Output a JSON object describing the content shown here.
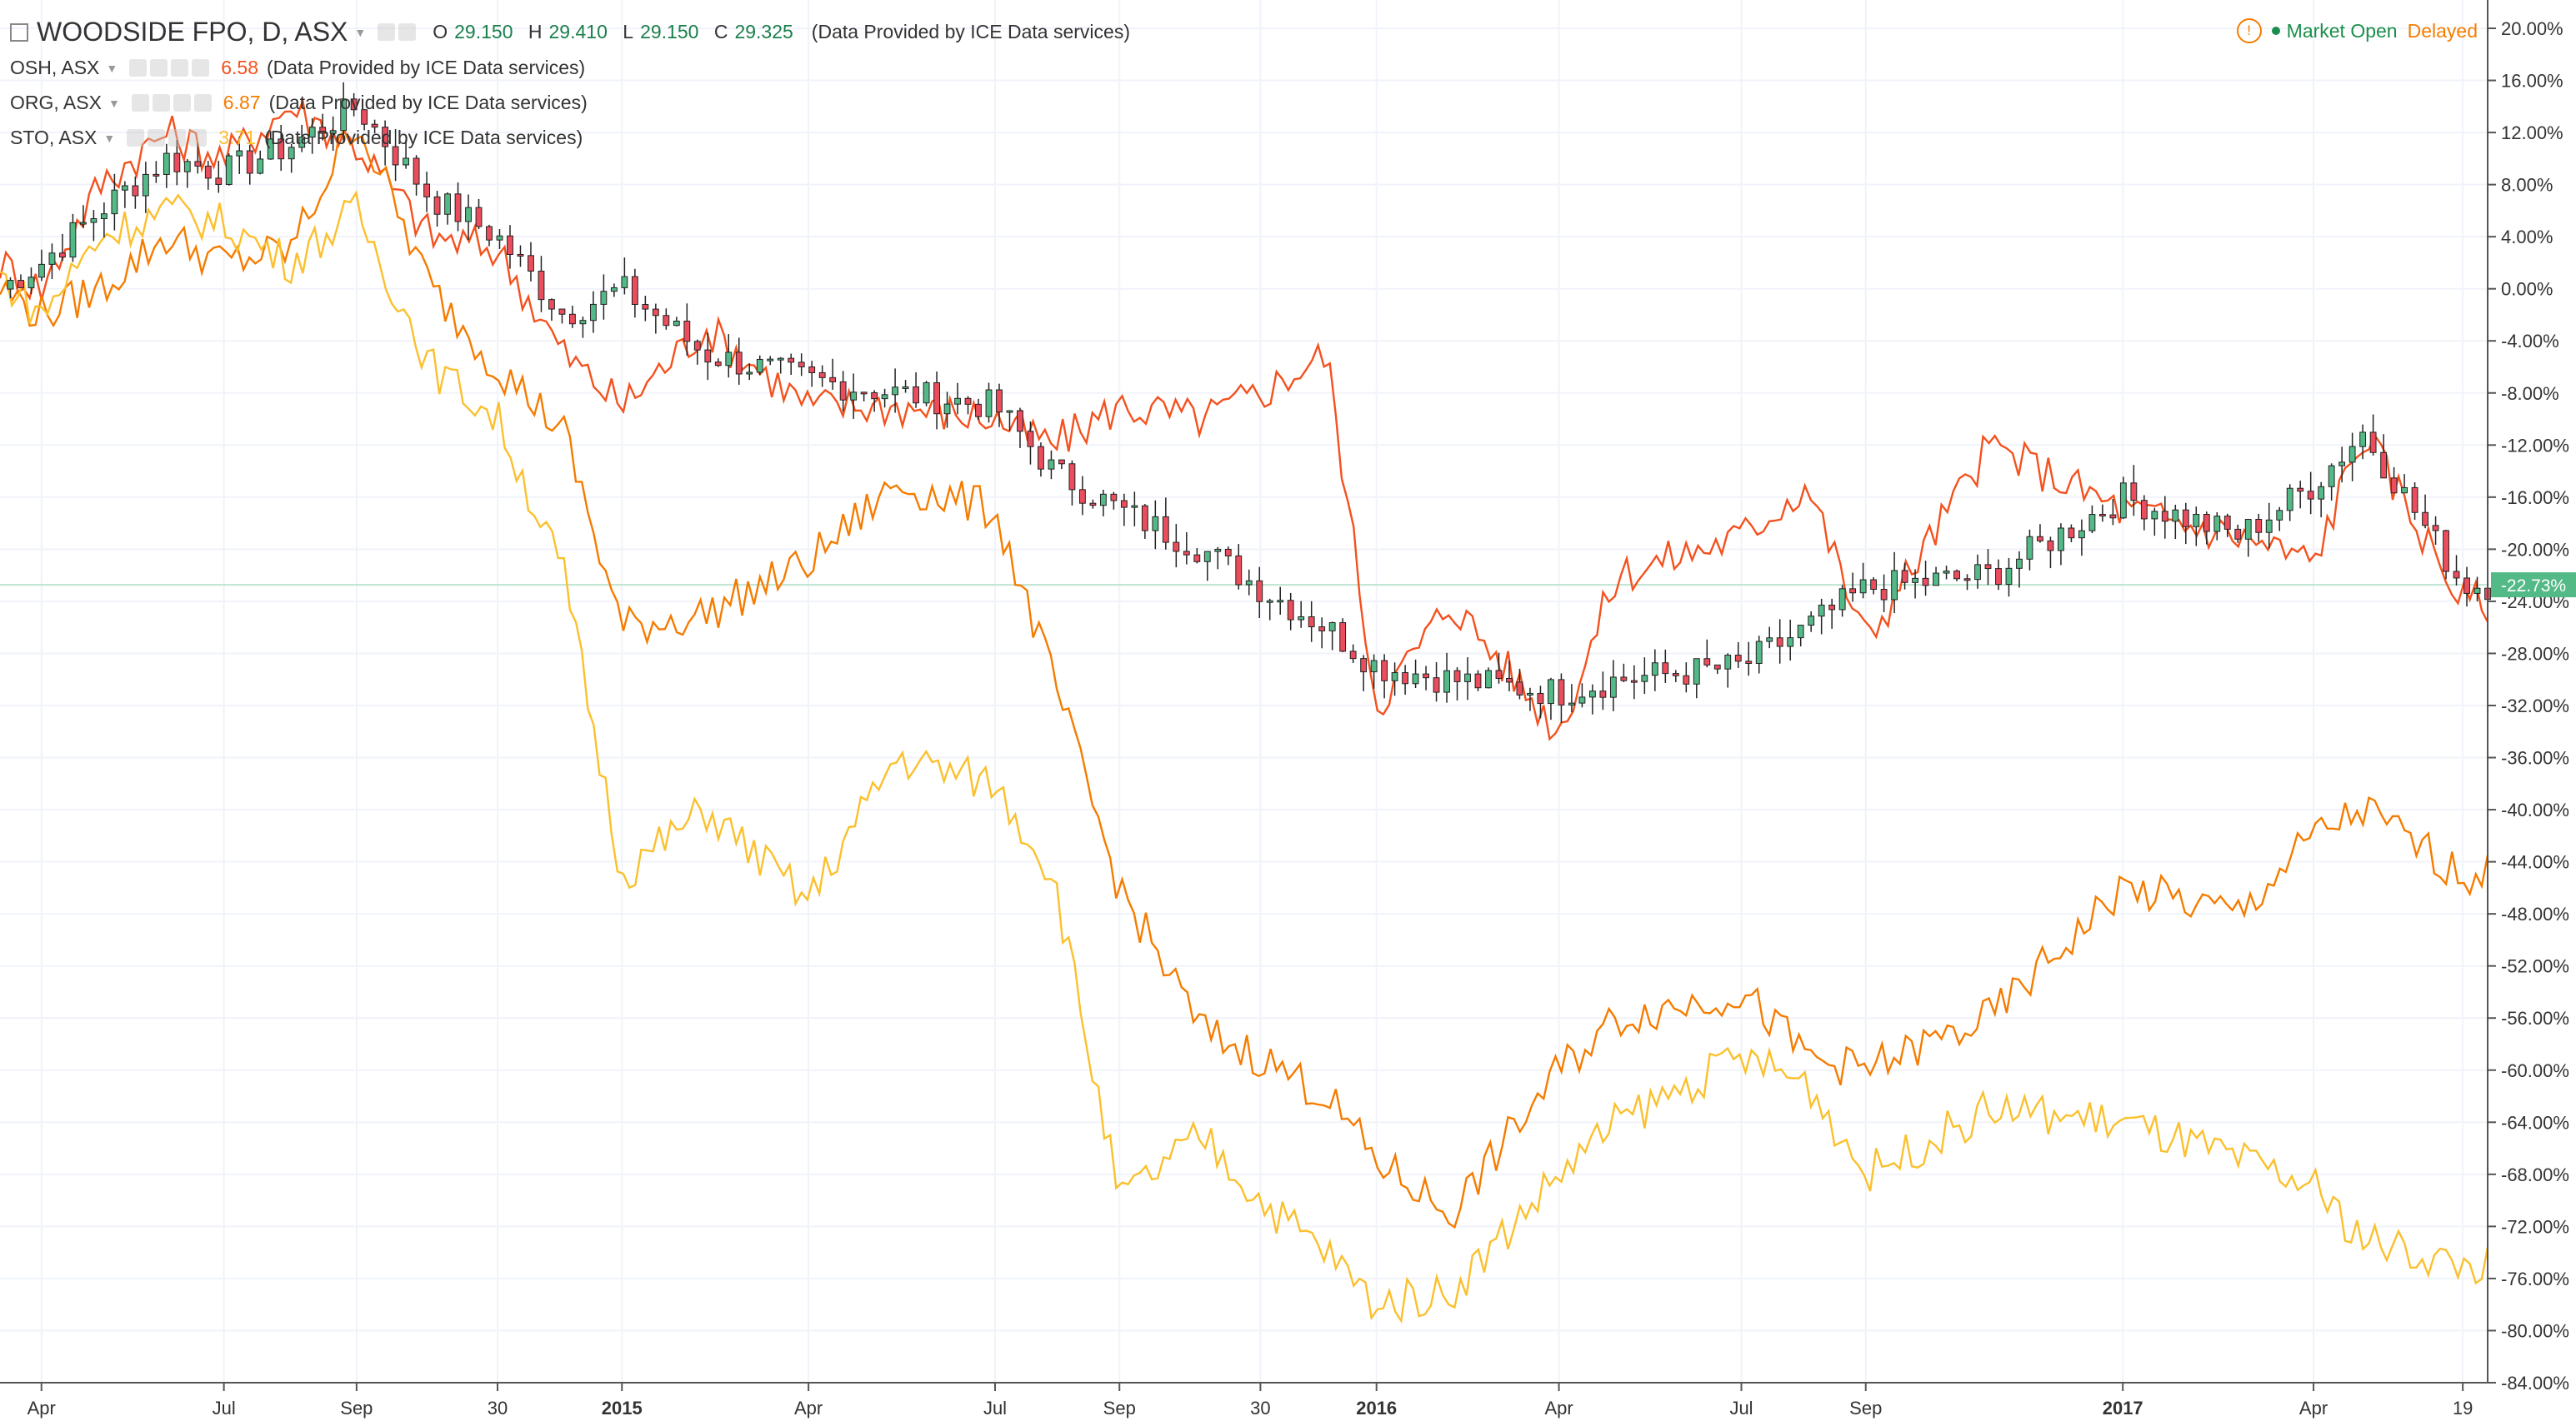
{
  "header": {
    "main_symbol": "WOODSIDE FPO, D, ASX",
    "ohlc": {
      "o_label": "O",
      "o": "29.150",
      "h_label": "H",
      "h": "29.410",
      "l_label": "L",
      "l": "29.150",
      "c_label": "C",
      "c": "29.325"
    },
    "source": "(Data Provided by ICE Data services)",
    "market_status": "Market Open",
    "delay_status": "Delayed"
  },
  "legend": [
    {
      "symbol": "OSH, ASX",
      "value": "6.58",
      "source": "(Data Provided by ICE Data services)",
      "color": "#f4511e"
    },
    {
      "symbol": "ORG, ASX",
      "value": "6.87",
      "source": "(Data Provided by ICE Data services)",
      "color": "#f57c00"
    },
    {
      "symbol": "STO, ASX",
      "value": "3.71",
      "source": "(Data Provided by ICE Data services)",
      "color": "#fbc02d"
    }
  ],
  "colors": {
    "background": "#ffffff",
    "grid": "#f0f3fa",
    "axis_text": "#333333",
    "candle_up": "#53b987",
    "candle_down": "#eb4d5c",
    "wick": "#222222",
    "last_label_bg": "#53b987",
    "last_label_text": "#ffffff",
    "zero_line": "#bfe3d0"
  },
  "chart_data": {
    "type": "line",
    "title": "WOODSIDE FPO, D, ASX",
    "xlabel": "",
    "ylabel": "",
    "x_ticks": [
      "Apr",
      "Jul",
      "Sep",
      "30",
      "2015",
      "Apr",
      "Jul",
      "Sep",
      "30",
      "2016",
      "Apr",
      "Jul",
      "Sep",
      "2017",
      "Apr",
      "19"
    ],
    "x_tick_pos": [
      0.05,
      0.27,
      0.43,
      0.6,
      0.75,
      0.975,
      1.2,
      1.35,
      1.52,
      1.66,
      1.88,
      2.1,
      2.25,
      2.56,
      2.79,
      2.97
    ],
    "x_range": [
      0,
      3
    ],
    "ylim": [
      -84,
      20
    ],
    "y_ticks": [
      20,
      16,
      12,
      8,
      4,
      0,
      -4,
      -8,
      -12,
      -16,
      -20,
      -24,
      -28,
      -32,
      -36,
      -40,
      -44,
      -48,
      -52,
      -56,
      -60,
      -64,
      -68,
      -72,
      -76,
      -80,
      -84
    ],
    "y_tick_format": "{v}.00%",
    "grid": true,
    "legend_position": "top-left",
    "last_value_label": "-22.73%",
    "last_value": -22.73,
    "x": [
      0,
      0.05,
      0.12,
      0.2,
      0.27,
      0.35,
      0.43,
      0.52,
      0.6,
      0.68,
      0.75,
      0.85,
      0.975,
      1.08,
      1.2,
      1.27,
      1.35,
      1.45,
      1.52,
      1.6,
      1.66,
      1.75,
      1.88,
      1.95,
      2.1,
      2.18,
      2.25,
      2.4,
      2.56,
      2.7,
      2.79,
      2.85,
      2.97
    ],
    "series": [
      {
        "name": "WOODSIDE FPO",
        "kind": "candles",
        "values": [
          0,
          2,
          6,
          10,
          9,
          11,
          14,
          7,
          4,
          -2,
          0,
          -5,
          -7,
          -8,
          -9,
          -14,
          -17,
          -20,
          -23,
          -26,
          -29,
          -30,
          -31,
          -30,
          -29,
          -26,
          -23,
          -22,
          -16,
          -19,
          -15,
          -11,
          -22.73
        ]
      },
      {
        "name": "OSH, ASX",
        "kind": "line",
        "values": [
          2,
          0,
          8,
          12,
          10,
          14,
          11,
          4,
          3,
          -5,
          -9,
          -3,
          -9,
          -9,
          -10,
          -12,
          -9,
          -10,
          -8,
          -5,
          -32,
          -24,
          -34,
          -22,
          -19,
          -15,
          -27,
          -12,
          -17,
          -19,
          -21,
          -11,
          -24
        ]
      },
      {
        "name": "ORG, ASX",
        "kind": "line",
        "values": [
          0,
          -2,
          0,
          4,
          2,
          3,
          13,
          0,
          -6,
          -11,
          -26,
          -25,
          -21,
          -15,
          -17,
          -30,
          -46,
          -57,
          -59,
          -62,
          -67,
          -71,
          -60,
          -56,
          -54,
          -59,
          -60,
          -56,
          -46,
          -48,
          -42,
          -40,
          -45
        ]
      },
      {
        "name": "STO, ASX",
        "kind": "line",
        "values": [
          1,
          -2,
          4,
          6,
          5,
          2,
          6,
          -6,
          -10,
          -22,
          -45,
          -40,
          -47,
          -36,
          -38,
          -45,
          -70,
          -65,
          -70,
          -74,
          -78,
          -77,
          -68,
          -64,
          -59,
          -61,
          -68,
          -63,
          -64,
          -67,
          -69,
          -73,
          -75
        ]
      }
    ]
  }
}
